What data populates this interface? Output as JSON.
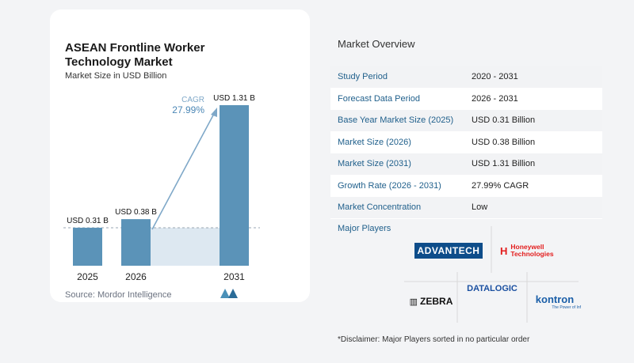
{
  "chart_data": {
    "type": "bar",
    "title": "ASEAN Frontline Worker Technology Market",
    "subtitle": "Market Size in USD Billion",
    "categories": [
      "2025",
      "2026",
      "2031"
    ],
    "values": [
      0.31,
      0.38,
      1.31
    ],
    "data_labels": [
      "USD 0.31 B",
      "USD 0.38 B",
      "USD 1.31 B"
    ],
    "cagr_label": "CAGR",
    "cagr_value": "27.99%",
    "bar_color": "#5b93b8",
    "arrow_color": "#7fa8c8"
  },
  "source": "Source:  Mordor Intelligence",
  "overview": {
    "title": "Market Overview",
    "rows": [
      {
        "label": "Study Period",
        "value": "2020 - 2031"
      },
      {
        "label": "Forecast Data Period",
        "value": "2026 - 2031"
      },
      {
        "label": "Base Year Market Size (2025)",
        "value": "USD 0.31 Billion"
      },
      {
        "label": "Market Size (2026)",
        "value": "USD 0.38 Billion"
      },
      {
        "label": "Market Size (2031)",
        "value": "USD 1.31 Billion"
      },
      {
        "label": "Growth Rate (2026 - 2031)",
        "value": "27.99% CAGR"
      },
      {
        "label": "Market Concentration",
        "value": "Low"
      }
    ]
  },
  "players": {
    "title": "Major Players",
    "logos": [
      "ADVANTECH",
      "Honeywell Technologies",
      "DATALOGIC",
      "ZEBRA",
      "kontron"
    ],
    "kontron_tagline": "The Power of Inf"
  },
  "disclaimer": "*Disclaimer: Major Players sorted in no particular order"
}
